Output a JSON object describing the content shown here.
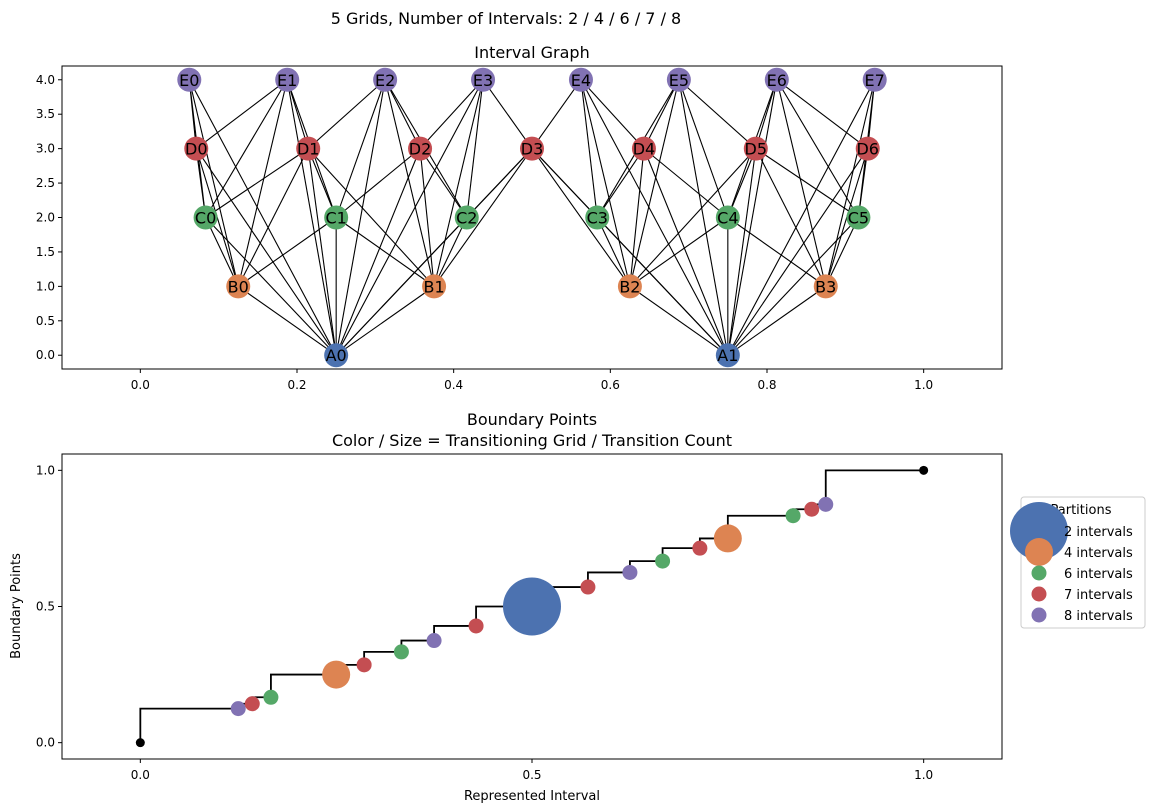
{
  "figure": {
    "suptitle": "5 Grids, Number of Intervals: 2 / 4 / 6 / 7 / 8"
  },
  "colors": {
    "A": "#4c72b0",
    "B": "#dd8452",
    "C": "#55a868",
    "D": "#c44e52",
    "E": "#8172b3",
    "endpoint": "#000000",
    "edge": "#000000"
  },
  "chart_data": [
    {
      "type": "scatter",
      "title": "Interval Graph",
      "xlabel": "",
      "ylabel": "",
      "xlim": [
        -0.1,
        1.1
      ],
      "ylim": [
        -0.2,
        4.2
      ],
      "xticks": [
        "0.0",
        "0.2",
        "0.4",
        "0.6",
        "0.8",
        "1.0"
      ],
      "yticks": [
        "0.0",
        "0.5",
        "1.0",
        "1.5",
        "2.0",
        "2.5",
        "3.0",
        "3.5",
        "4.0"
      ],
      "grid": false,
      "nodes": [
        {
          "label": "A0",
          "group": "A",
          "x": 0.25,
          "y": 0
        },
        {
          "label": "A1",
          "group": "A",
          "x": 0.75,
          "y": 0
        },
        {
          "label": "B0",
          "group": "B",
          "x": 0.125,
          "y": 1
        },
        {
          "label": "B1",
          "group": "B",
          "x": 0.375,
          "y": 1
        },
        {
          "label": "B2",
          "group": "B",
          "x": 0.625,
          "y": 1
        },
        {
          "label": "B3",
          "group": "B",
          "x": 0.875,
          "y": 1
        },
        {
          "label": "C0",
          "group": "C",
          "x": 0.0833,
          "y": 2
        },
        {
          "label": "C1",
          "group": "C",
          "x": 0.25,
          "y": 2
        },
        {
          "label": "C2",
          "group": "C",
          "x": 0.4167,
          "y": 2
        },
        {
          "label": "C3",
          "group": "C",
          "x": 0.5833,
          "y": 2
        },
        {
          "label": "C4",
          "group": "C",
          "x": 0.75,
          "y": 2
        },
        {
          "label": "C5",
          "group": "C",
          "x": 0.9167,
          "y": 2
        },
        {
          "label": "D0",
          "group": "D",
          "x": 0.0714,
          "y": 3
        },
        {
          "label": "D1",
          "group": "D",
          "x": 0.2143,
          "y": 3
        },
        {
          "label": "D2",
          "group": "D",
          "x": 0.3571,
          "y": 3
        },
        {
          "label": "D3",
          "group": "D",
          "x": 0.5,
          "y": 3
        },
        {
          "label": "D4",
          "group": "D",
          "x": 0.6429,
          "y": 3
        },
        {
          "label": "D5",
          "group": "D",
          "x": 0.7857,
          "y": 3
        },
        {
          "label": "D6",
          "group": "D",
          "x": 0.9286,
          "y": 3
        },
        {
          "label": "E0",
          "group": "E",
          "x": 0.0625,
          "y": 4
        },
        {
          "label": "E1",
          "group": "E",
          "x": 0.1875,
          "y": 4
        },
        {
          "label": "E2",
          "group": "E",
          "x": 0.3125,
          "y": 4
        },
        {
          "label": "E3",
          "group": "E",
          "x": 0.4375,
          "y": 4
        },
        {
          "label": "E4",
          "group": "E",
          "x": 0.5625,
          "y": 4
        },
        {
          "label": "E5",
          "group": "E",
          "x": 0.6875,
          "y": 4
        },
        {
          "label": "E6",
          "group": "E",
          "x": 0.8125,
          "y": 4
        },
        {
          "label": "E7",
          "group": "E",
          "x": 0.9375,
          "y": 4
        }
      ],
      "edges": "overlap"
    },
    {
      "type": "scatter",
      "title": "Boundary Points\nColor / Size = Transitioning Grid / Transition Count",
      "xlabel": "Represented Interval",
      "ylabel": "Boundary Points",
      "xlim": [
        -0.1,
        1.1
      ],
      "ylim": [
        -0.06,
        1.06
      ],
      "xticks": [
        "0.0",
        "0.5",
        "1.0"
      ],
      "yticks": [
        "0.0",
        "0.5",
        "1.0"
      ],
      "grid": false,
      "legend": {
        "title": "Partitions",
        "placement": "right",
        "entries": [
          {
            "label": "2 intervals",
            "group": "A",
            "size": 5
          },
          {
            "label": "4 intervals",
            "group": "B",
            "size": 4
          },
          {
            "label": "6 intervals",
            "group": "C",
            "size": 3
          },
          {
            "label": "7 intervals",
            "group": "D",
            "size": 2
          },
          {
            "label": "8 intervals",
            "group": "E",
            "size": 1
          }
        ]
      },
      "step_x": [
        0,
        0.125,
        0.1429,
        0.1667,
        0.25,
        0.2857,
        0.3333,
        0.375,
        0.4286,
        0.5,
        0.5714,
        0.625,
        0.6667,
        0.7143,
        0.75,
        0.8333,
        0.8571,
        0.875,
        1.0
      ],
      "points": [
        {
          "x": 0.125,
          "y": 0.125,
          "group": "E",
          "size": 1
        },
        {
          "x": 0.1429,
          "y": 0.1429,
          "group": "D",
          "size": 1
        },
        {
          "x": 0.1667,
          "y": 0.1667,
          "group": "C",
          "size": 1
        },
        {
          "x": 0.25,
          "y": 0.25,
          "group": "B",
          "size": 3
        },
        {
          "x": 0.2857,
          "y": 0.2857,
          "group": "D",
          "size": 1
        },
        {
          "x": 0.3333,
          "y": 0.3333,
          "group": "C",
          "size": 1
        },
        {
          "x": 0.375,
          "y": 0.375,
          "group": "E",
          "size": 1
        },
        {
          "x": 0.4286,
          "y": 0.4286,
          "group": "D",
          "size": 1
        },
        {
          "x": 0.5,
          "y": 0.5,
          "group": "A",
          "size": 5
        },
        {
          "x": 0.5714,
          "y": 0.5714,
          "group": "D",
          "size": 1
        },
        {
          "x": 0.625,
          "y": 0.625,
          "group": "E",
          "size": 1
        },
        {
          "x": 0.6667,
          "y": 0.6667,
          "group": "C",
          "size": 1
        },
        {
          "x": 0.7143,
          "y": 0.7143,
          "group": "D",
          "size": 1
        },
        {
          "x": 0.75,
          "y": 0.75,
          "group": "B",
          "size": 3
        },
        {
          "x": 0.8333,
          "y": 0.8333,
          "group": "C",
          "size": 1
        },
        {
          "x": 0.8571,
          "y": 0.8571,
          "group": "D",
          "size": 1
        },
        {
          "x": 0.875,
          "y": 0.875,
          "group": "E",
          "size": 1
        }
      ],
      "endpoints": [
        {
          "x": 0,
          "y": 0
        },
        {
          "x": 1,
          "y": 1
        }
      ]
    }
  ]
}
